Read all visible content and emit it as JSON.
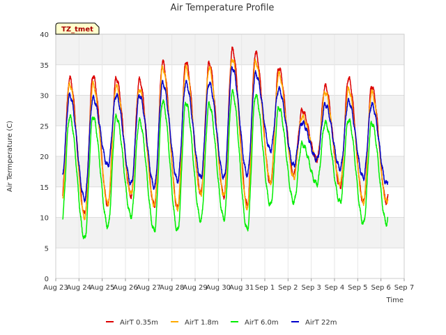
{
  "chart_data": {
    "type": "line",
    "title": "Air Temperature Profile",
    "xlabel": "Time",
    "ylabel": "Air Termperature (C)",
    "badge": "TZ_tmet",
    "ylim": [
      0,
      40
    ],
    "yticks": [
      0,
      5,
      10,
      15,
      20,
      25,
      30,
      35,
      40
    ],
    "xlim": [
      0,
      15
    ],
    "xticks": [
      0,
      1,
      2,
      3,
      4,
      5,
      6,
      7,
      8,
      9,
      10,
      11,
      12,
      13,
      14,
      15
    ],
    "xtick_labels": [
      "Aug 23",
      "Aug 24",
      "Aug 25",
      "Aug 26",
      "Aug 27",
      "Aug 28",
      "Aug 29",
      "Aug 30",
      "Aug 31",
      "Sep 1",
      "Sep 2",
      "Sep 3",
      "Sep 4",
      "Sep 5",
      "Sep 6",
      "Sep 7"
    ],
    "grid": true,
    "legend_position": "bottom",
    "start_day": 0.3,
    "end_day": 14.3,
    "series": [
      {
        "name": "AirT 0.35m",
        "color": "#dd0000",
        "min": [
          12.5,
          10.5,
          12.0,
          13.5,
          12.0,
          11.5,
          14.0,
          13.5,
          12.0,
          15.5,
          17.0,
          19.5,
          15.0,
          12.5,
          12.5,
          14.0
        ],
        "max": [
          32.8,
          33.2,
          32.8,
          32.5,
          35.5,
          35.5,
          35.3,
          37.5,
          37.0,
          34.5,
          27.5,
          31.5,
          32.8,
          31.5
        ]
      },
      {
        "name": "AirT 1.8m",
        "color": "#ffaa00",
        "min": [
          12.0,
          10.0,
          12.2,
          13.8,
          12.0,
          11.5,
          13.8,
          13.5,
          11.5,
          15.8,
          16.5,
          19.5,
          15.5,
          12.5,
          12.5,
          13.5
        ],
        "max": [
          31.8,
          31.8,
          31.5,
          31.0,
          34.5,
          34.5,
          34.5,
          36.0,
          35.5,
          33.5,
          26.5,
          30.5,
          31.0,
          30.5
        ]
      },
      {
        "name": "AirT 6.0m",
        "color": "#00ee00",
        "min": [
          8.8,
          6.5,
          8.5,
          10.2,
          7.8,
          7.8,
          9.5,
          9.8,
          8.0,
          12.0,
          12.5,
          15.5,
          12.5,
          9.0,
          9.0,
          9.5
        ],
        "max": [
          26.5,
          26.5,
          26.5,
          25.8,
          29.0,
          28.8,
          28.5,
          30.5,
          30.0,
          28.0,
          22.0,
          25.5,
          26.0,
          25.5
        ]
      },
      {
        "name": "AirT 22m",
        "color": "#0000cc",
        "min": [
          16.0,
          13.0,
          18.5,
          15.5,
          15.0,
          16.0,
          16.5,
          16.5,
          17.0,
          21.0,
          18.5,
          19.5,
          18.0,
          16.5,
          15.5,
          18.0
        ],
        "max": [
          30.0,
          29.5,
          30.0,
          30.0,
          32.0,
          32.0,
          32.0,
          34.5,
          33.5,
          31.0,
          25.5,
          28.5,
          29.0,
          28.5
        ]
      }
    ]
  }
}
